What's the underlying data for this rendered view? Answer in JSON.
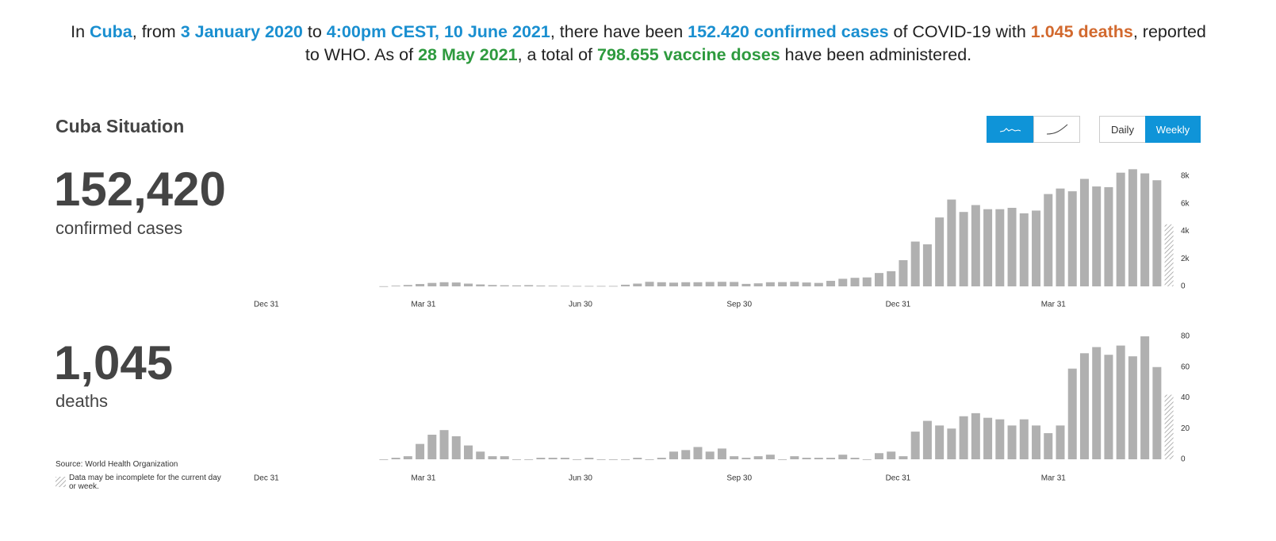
{
  "summary": [
    {
      "text": "In "
    },
    {
      "text": "Cuba",
      "color": "#1a8fd0"
    },
    {
      "text": ", from "
    },
    {
      "text": "3 January 2020",
      "color": "#1a8fd0"
    },
    {
      "text": " to "
    },
    {
      "text": "4:00pm CEST, 10 June 2021",
      "color": "#1a8fd0"
    },
    {
      "text": ", there have been "
    },
    {
      "text": "152.420 confirmed cases",
      "color": "#1a8fd0"
    },
    {
      "text": " of COVID-19 with "
    },
    {
      "text": "1.045 deaths",
      "color": "#d2692e"
    },
    {
      "text": ", reported to WHO. As of "
    },
    {
      "text": "28 May 2021",
      "color": "#2e9a3e"
    },
    {
      "text": ", a total of "
    },
    {
      "text": "798.655 vaccine doses",
      "color": "#2e9a3e"
    },
    {
      "text": " have been administered."
    }
  ],
  "title": "Cuba Situation",
  "stats": [
    {
      "value": "152,420",
      "label": "confirmed cases"
    },
    {
      "value": "1,045",
      "label": "deaths"
    }
  ],
  "period_buttons": [
    "Daily",
    "Weekly"
  ],
  "active_period": "Weekly",
  "source": "Source: World Health Organization",
  "note": "Data may be incomplete for the current day or week.",
  "chart_data": [
    {
      "type": "bar",
      "color": "#b0b0b0",
      "last_incomplete": true,
      "xlim": [
        -7,
        530
      ],
      "xticks": [
        {
          "value": 0,
          "label": "Dec 31"
        },
        {
          "value": 91,
          "label": "Mar 31"
        },
        {
          "value": 182,
          "label": "Jun 30"
        },
        {
          "value": 274,
          "label": "Sep 30"
        },
        {
          "value": 366,
          "label": "Dec 31"
        },
        {
          "value": 456,
          "label": "Mar 31"
        }
      ],
      "ylim": [
        0,
        8600
      ],
      "yticks": [
        0,
        {
          "value": 2000,
          "label": "2k"
        },
        {
          "value": 4000,
          "label": "4k"
        },
        {
          "value": 6000,
          "label": "6k"
        },
        {
          "value": 8000,
          "label": "8k"
        }
      ],
      "x": [
        68,
        75,
        82,
        89,
        96,
        103,
        110,
        117,
        124,
        131,
        138,
        145,
        152,
        159,
        166,
        173,
        180,
        187,
        194,
        201,
        208,
        215,
        222,
        229,
        236,
        243,
        250,
        257,
        264,
        271,
        278,
        285,
        292,
        299,
        306,
        313,
        320,
        327,
        334,
        341,
        348,
        355,
        362,
        369,
        376,
        383,
        390,
        397,
        404,
        411,
        418,
        425,
        432,
        439,
        446,
        453,
        460,
        467,
        474,
        481,
        488,
        495,
        502,
        509,
        516,
        523
      ],
      "values": [
        10,
        50,
        100,
        170,
        250,
        300,
        280,
        200,
        140,
        100,
        80,
        70,
        90,
        60,
        50,
        40,
        30,
        30,
        30,
        30,
        120,
        200,
        330,
        300,
        270,
        300,
        300,
        320,
        330,
        320,
        180,
        220,
        300,
        310,
        330,
        280,
        250,
        400,
        550,
        620,
        650,
        970,
        1100,
        1900,
        3250,
        3050,
        5000,
        6300,
        5400,
        5900,
        5600,
        5600,
        5700,
        5300,
        5500,
        6700,
        7100,
        6900,
        7800,
        7250,
        7200,
        8250,
        8500,
        8200,
        7700,
        4500
      ]
    },
    {
      "type": "bar",
      "color": "#b0b0b0",
      "last_incomplete": true,
      "xlim": [
        -7,
        530
      ],
      "xticks": [
        {
          "value": 0,
          "label": "Dec 31"
        },
        {
          "value": 91,
          "label": "Mar 31"
        },
        {
          "value": 182,
          "label": "Jun 30"
        },
        {
          "value": 274,
          "label": "Sep 30"
        },
        {
          "value": 366,
          "label": "Dec 31"
        },
        {
          "value": 456,
          "label": "Mar 31"
        }
      ],
      "ylim": [
        0,
        85
      ],
      "yticks": [
        0,
        20,
        40,
        60,
        80
      ],
      "x": [
        68,
        75,
        82,
        89,
        96,
        103,
        110,
        117,
        124,
        131,
        138,
        145,
        152,
        159,
        166,
        173,
        180,
        187,
        194,
        201,
        208,
        215,
        222,
        229,
        236,
        243,
        250,
        257,
        264,
        271,
        278,
        285,
        292,
        299,
        306,
        313,
        320,
        327,
        334,
        341,
        348,
        355,
        362,
        369,
        376,
        383,
        390,
        397,
        404,
        411,
        418,
        425,
        432,
        439,
        446,
        453,
        460,
        467,
        474,
        481,
        488,
        495,
        502,
        509,
        516,
        523
      ],
      "values": [
        0,
        1,
        2,
        10,
        16,
        19,
        15,
        9,
        5,
        2,
        2,
        0,
        0,
        1,
        1,
        1,
        0,
        1,
        0,
        0,
        0,
        1,
        0,
        1,
        5,
        6,
        8,
        5,
        7,
        2,
        1,
        2,
        3,
        0,
        2,
        1,
        1,
        1,
        3,
        1,
        0,
        4,
        5,
        2,
        18,
        25,
        22,
        20,
        28,
        30,
        27,
        26,
        22,
        26,
        22,
        17,
        22,
        59,
        69,
        73,
        68,
        74,
        67,
        80,
        60,
        42
      ]
    }
  ]
}
